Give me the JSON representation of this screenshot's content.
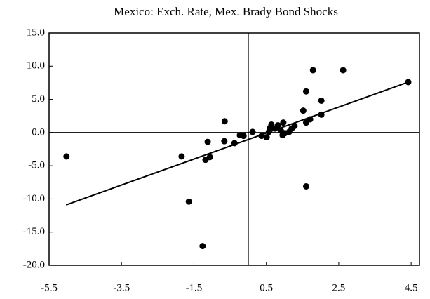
{
  "chart_data": {
    "type": "scatter",
    "title": "Mexico:  Exch. Rate, Mex. Brady Bond Shocks",
    "color": "#000000",
    "x": [
      -5.02,
      -1.84,
      -1.64,
      -1.26,
      -1.18,
      -1.06,
      -1.12,
      -0.66,
      -0.65,
      -0.38,
      -0.23,
      -0.13,
      0.12,
      0.37,
      0.51,
      0.57,
      0.6,
      0.64,
      0.74,
      0.82,
      0.9,
      0.95,
      0.97,
      1.01,
      1.13,
      1.2,
      1.28,
      1.52,
      1.6,
      1.6,
      1.6,
      1.71,
      1.79,
      2.02,
      2.02,
      2.62,
      4.42
    ],
    "values": [
      -3.6,
      -3.6,
      -10.4,
      -17.1,
      -4.1,
      -3.7,
      -1.4,
      -1.3,
      1.7,
      -1.6,
      -0.4,
      -0.5,
      0.1,
      -0.5,
      -0.7,
      0.1,
      0.7,
      1.2,
      0.6,
      1.1,
      0.3,
      -0.4,
      1.5,
      -0.1,
      0.1,
      0.6,
      1.0,
      3.3,
      1.5,
      6.2,
      -8.1,
      2.0,
      9.4,
      2.7,
      4.8,
      9.4,
      7.6
    ],
    "fit": {
      "x": [
        -5.03,
        4.42
      ],
      "y": [
        -10.9,
        7.6
      ]
    },
    "xlim": [
      -5.5,
      4.73
    ],
    "ylim": [
      -20,
      15
    ],
    "xticks": [
      -5.5,
      -3.5,
      -1.5,
      0.5,
      2.5,
      4.5
    ],
    "yticks": [
      {
        "value": 15,
        "label": "15.0"
      },
      {
        "value": 10,
        "label": "10.0"
      },
      {
        "value": 5,
        "label": "5.0"
      },
      {
        "value": 0,
        "label": "0.0"
      },
      {
        "value": -5,
        "label": "-5.0"
      },
      {
        "value": -10,
        "label": "-10.0"
      },
      {
        "value": -15,
        "label": "-15.0"
      },
      {
        "value": -20,
        "label": "-20.0"
      }
    ]
  }
}
